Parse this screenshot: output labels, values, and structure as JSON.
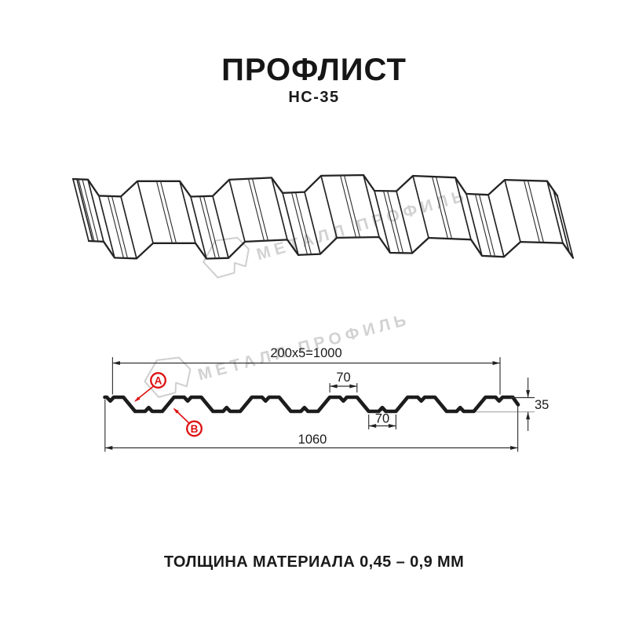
{
  "header": {
    "title": "ПРОФЛИСТ",
    "subtitle": "НС-35"
  },
  "watermark": {
    "brand": "МЕТАЛЛ ПРОФИЛЬ"
  },
  "dimensions": {
    "coverage_width": "200x5=1000",
    "rib_top_width": "70",
    "rib_bottom_width": "70",
    "profile_height": "35",
    "overall_width": "1060",
    "side_a_label": "A",
    "side_b_label": "B"
  },
  "footer": {
    "thickness_note": "ТОЛЩИНА МАТЕРИАЛА 0,45 – 0,9 ММ"
  },
  "colors": {
    "line": "#1c1c1c",
    "annotation_red": "#dd1111",
    "watermark_gray": "#d2d2d2"
  }
}
